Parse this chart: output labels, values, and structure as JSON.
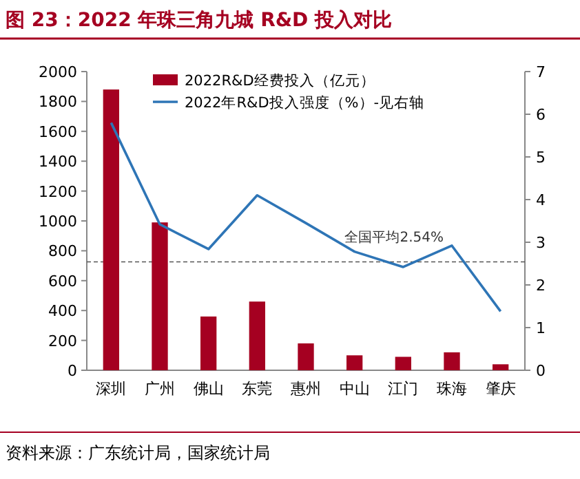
{
  "chart_data": {
    "type": "bar",
    "title": "图 23：2022 年珠三角九城 R&D 投入对比",
    "categories": [
      "深圳",
      "广州",
      "佛山",
      "东莞",
      "惠州",
      "中山",
      "江门",
      "珠海",
      "肇庆"
    ],
    "series": [
      {
        "name": "2022R&D经费投入（亿元）",
        "color": "#a50021",
        "values": [
          1880,
          990,
          360,
          460,
          180,
          100,
          90,
          120,
          40
        ]
      },
      {
        "name": "2022年R&D投入强度（%）-见右轴",
        "type": "line",
        "axis": "y2",
        "color": "#2e75b6",
        "values": [
          5.8,
          3.42,
          2.84,
          4.1,
          3.45,
          2.78,
          2.42,
          2.92,
          1.38
        ]
      }
    ],
    "ylim": [
      0,
      2000
    ],
    "yticks": [
      0,
      200,
      400,
      600,
      800,
      1000,
      1200,
      1400,
      1600,
      1800,
      2000
    ],
    "y2lim": [
      0,
      7
    ],
    "y2ticks": [
      0,
      1,
      2,
      3,
      4,
      5,
      6,
      7
    ],
    "ref_lines": [
      {
        "axis": "y2",
        "value": 2.54,
        "label": "全国平均2.54%",
        "color": "#555555",
        "line_style": "dashed"
      }
    ],
    "annotations": [
      "资料来源：广东统计局，国家统计局"
    ],
    "legend": "top",
    "grid": false,
    "marker": "none",
    "line_style": "solid"
  }
}
